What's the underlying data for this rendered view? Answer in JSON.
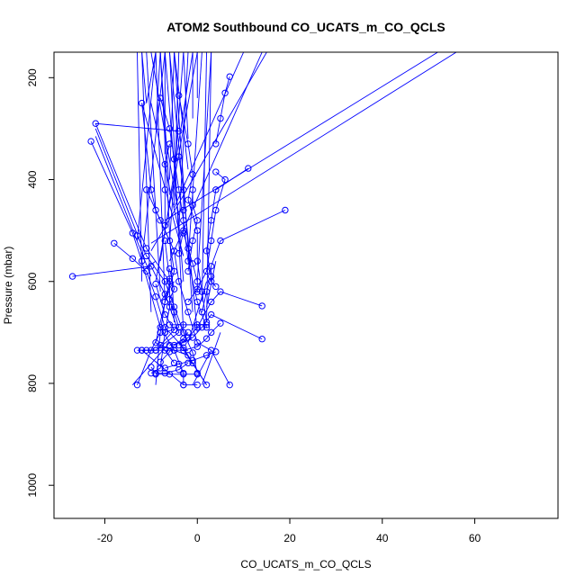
{
  "chart_data": {
    "type": "scatter",
    "title": "ATOM2 Southbound CO_UCATS_m_CO_QCLS",
    "xlabel": "CO_UCATS_m_CO_QCLS",
    "ylabel": "Pressure (mbar)",
    "xlim": [
      -31,
      78
    ],
    "ylim": [
      1065,
      150
    ],
    "y_inverted": true,
    "x_ticks": [
      "-20",
      "0",
      "20",
      "40",
      "60"
    ],
    "y_ticks": [
      "200",
      "400",
      "600",
      "800",
      "1000"
    ],
    "grid": false,
    "legend": "none",
    "line_color": "#0000ff",
    "marker": "open-circle",
    "series": [
      {
        "values": [
          [
            -4,
            305
          ],
          [
            -22,
            290
          ],
          [
            -11,
            535
          ],
          [
            -6,
            600
          ],
          [
            -9,
            720
          ],
          [
            -7,
            735
          ],
          [
            -5,
            760
          ]
        ]
      },
      {
        "values": [
          [
            -23,
            325
          ],
          [
            -14,
            505
          ],
          [
            -12,
            560
          ],
          [
            -8,
            690
          ],
          [
            -5,
            735
          ],
          [
            -3,
            780
          ],
          [
            -3,
            803
          ]
        ]
      },
      {
        "values": [
          [
            -27,
            590
          ],
          [
            -10,
            570
          ],
          [
            -7,
            625
          ],
          [
            -4,
            700
          ],
          [
            -9,
            735
          ],
          [
            -12,
            735
          ],
          [
            -3,
            803
          ],
          [
            0,
            803
          ]
        ]
      },
      {
        "values": [
          [
            -12,
            250
          ],
          [
            -10,
            420
          ],
          [
            -9,
            460
          ],
          [
            -6,
            520
          ],
          [
            -5,
            580
          ],
          [
            -7,
            640
          ],
          [
            -8,
            700
          ],
          [
            -10,
            735
          ],
          [
            -13,
            803
          ]
        ]
      },
      {
        "values": [
          [
            -11,
            420
          ],
          [
            -8,
            480
          ],
          [
            -5,
            540
          ],
          [
            -4,
            600
          ],
          [
            -2,
            660
          ],
          [
            0,
            720
          ],
          [
            3,
            735
          ],
          [
            7,
            803
          ]
        ]
      },
      {
        "values": [
          [
            -18,
            525
          ],
          [
            -14,
            555
          ],
          [
            -11,
            580
          ],
          [
            -9,
            630
          ],
          [
            -7,
            690
          ],
          [
            -3,
            730
          ],
          [
            -1,
            760
          ],
          [
            2,
            803
          ]
        ]
      },
      {
        "values": [
          [
            -13,
            510
          ],
          [
            -11,
            550
          ],
          [
            -7,
            600
          ],
          [
            -5,
            650
          ],
          [
            -3,
            700
          ],
          [
            -1,
            740
          ],
          [
            0,
            780
          ]
        ]
      },
      {
        "values": [
          [
            -7,
            520
          ],
          [
            -6,
            595
          ],
          [
            -6,
            650
          ],
          [
            -7,
            700
          ],
          [
            -8,
            770
          ],
          [
            -10,
            780
          ]
        ]
      },
      {
        "values": [
          [
            -7,
            490
          ],
          [
            -7,
            420
          ],
          [
            -7,
            370
          ],
          [
            -6,
            330
          ]
        ]
      },
      {
        "values": [
          [
            -8,
            240
          ],
          [
            -6,
            300
          ],
          [
            -5,
            360
          ],
          [
            -4,
            420
          ],
          [
            -3,
            480
          ],
          [
            -2,
            560
          ],
          [
            0,
            640
          ],
          [
            2,
            690
          ]
        ]
      },
      {
        "values": [
          [
            -4,
            235
          ],
          [
            -2,
            330
          ],
          [
            -1,
            390
          ],
          [
            -2,
            440
          ],
          [
            0,
            500
          ],
          [
            0,
            560
          ],
          [
            1,
            620
          ],
          [
            2,
            680
          ]
        ]
      },
      {
        "values": [
          [
            -4,
            355
          ],
          [
            -3,
            420
          ],
          [
            -3,
            460
          ],
          [
            -3,
            500
          ],
          [
            -4,
            545
          ]
        ]
      },
      {
        "values": [
          [
            4,
            385
          ],
          [
            6,
            400
          ],
          [
            4,
            460
          ],
          [
            3,
            520
          ],
          [
            2,
            580
          ],
          [
            0,
            615
          ],
          [
            -2,
            640
          ]
        ]
      },
      {
        "values": [
          [
            11,
            378
          ],
          [
            4,
            420
          ],
          [
            3,
            480
          ],
          [
            2,
            540
          ],
          [
            3,
            590
          ],
          [
            2,
            620
          ],
          [
            1,
            660
          ]
        ]
      },
      {
        "values": [
          [
            19,
            460
          ],
          [
            5,
            520
          ],
          [
            3,
            570
          ],
          [
            3,
            600
          ],
          [
            4,
            610
          ]
        ]
      },
      {
        "values": [
          [
            -1,
            420
          ],
          [
            -1,
            450
          ],
          [
            0,
            480
          ],
          [
            -1,
            520
          ],
          [
            -2,
            580
          ]
        ]
      },
      {
        "values": [
          [
            -3,
            505
          ],
          [
            -2,
            535
          ],
          [
            -1,
            565
          ],
          [
            0,
            600
          ],
          [
            0,
            620
          ]
        ]
      },
      {
        "values": [
          [
            -6,
            575
          ],
          [
            -5,
            615
          ],
          [
            -6,
            635
          ],
          [
            -5,
            660
          ],
          [
            -4,
            690
          ],
          [
            -7,
            700
          ]
        ]
      },
      {
        "values": [
          [
            14,
            648
          ],
          [
            5,
            620
          ],
          [
            3,
            640
          ],
          [
            0,
            690
          ],
          [
            -2,
            710
          ],
          [
            -4,
            725
          ]
        ]
      },
      {
        "values": [
          [
            14,
            713
          ],
          [
            3,
            665
          ],
          [
            1,
            690
          ],
          [
            -1,
            710
          ],
          [
            -3,
            720
          ],
          [
            -6,
            725
          ]
        ]
      },
      {
        "values": [
          [
            -9,
            605
          ],
          [
            -7,
            665
          ],
          [
            -5,
            695
          ],
          [
            -8,
            725
          ],
          [
            -5,
            735
          ],
          [
            -2,
            745
          ]
        ]
      },
      {
        "values": [
          [
            5,
            682
          ],
          [
            3,
            700
          ],
          [
            2,
            712
          ],
          [
            0,
            728
          ],
          [
            -3,
            735
          ]
        ]
      },
      {
        "values": [
          [
            4,
            738
          ],
          [
            2,
            745
          ],
          [
            -1,
            755
          ],
          [
            -4,
            762
          ],
          [
            -7,
            770
          ]
        ]
      },
      {
        "values": [
          [
            -2,
            700
          ],
          [
            -3,
            712
          ],
          [
            -5,
            725
          ],
          [
            -6,
            738
          ],
          [
            -8,
            758
          ]
        ]
      },
      {
        "values": [
          [
            -2,
            760
          ],
          [
            -4,
            773
          ],
          [
            -7,
            780
          ],
          [
            -9,
            780
          ],
          [
            -10,
            768
          ]
        ]
      },
      {
        "values": [
          [
            0,
            782
          ],
          [
            -3,
            782
          ],
          [
            -6,
            782
          ],
          [
            -9,
            782
          ]
        ]
      },
      {
        "values": [
          [
            -9,
            735
          ],
          [
            -11,
            735
          ],
          [
            -12,
            735
          ],
          [
            -13,
            735
          ]
        ]
      },
      {
        "values": [
          [
            -6,
            685
          ],
          [
            -3,
            685
          ],
          [
            0,
            685
          ],
          [
            2,
            685
          ]
        ]
      },
      {
        "values": [
          [
            7,
            198
          ],
          [
            6,
            230
          ],
          [
            5,
            280
          ],
          [
            4,
            330
          ]
        ]
      }
    ],
    "unmarked_lines": [
      [
        [
          -22,
          300
        ],
        [
          -12,
          530
        ]
      ],
      [
        [
          -22,
          315
        ],
        [
          -10,
          590
        ]
      ],
      [
        [
          -11,
          250
        ],
        [
          -12,
          150
        ]
      ],
      [
        [
          -11,
          250
        ],
        [
          -9,
          150
        ]
      ],
      [
        [
          -9,
          300
        ],
        [
          -8,
          150
        ]
      ],
      [
        [
          -7,
          350
        ],
        [
          -7,
          150
        ]
      ],
      [
        [
          -6,
          400
        ],
        [
          -5,
          150
        ]
      ],
      [
        [
          -5,
          450
        ],
        [
          -4,
          150
        ]
      ],
      [
        [
          -4,
          500
        ],
        [
          -2,
          150
        ]
      ],
      [
        [
          -6,
          520
        ],
        [
          -3,
          150
        ]
      ],
      [
        [
          -8,
          560
        ],
        [
          -1,
          150
        ]
      ],
      [
        [
          -9,
          600
        ],
        [
          0,
          150
        ]
      ],
      [
        [
          -7,
          640
        ],
        [
          -9,
          150
        ]
      ],
      [
        [
          -5,
          680
        ],
        [
          -8,
          150
        ]
      ],
      [
        [
          -3,
          700
        ],
        [
          -6,
          150
        ]
      ],
      [
        [
          -2,
          560
        ],
        [
          1,
          150
        ]
      ],
      [
        [
          0,
          600
        ],
        [
          3,
          150
        ]
      ],
      [
        [
          1,
          640
        ],
        [
          2,
          150
        ]
      ],
      [
        [
          2,
          680
        ],
        [
          3,
          150
        ]
      ],
      [
        [
          -4,
          470
        ],
        [
          -10,
          150
        ]
      ],
      [
        [
          -6,
          430
        ],
        [
          -8,
          150
        ]
      ],
      [
        [
          -8,
          620
        ],
        [
          -11,
          150
        ]
      ],
      [
        [
          -10,
          660
        ],
        [
          -12,
          150
        ]
      ],
      [
        [
          -12,
          600
        ],
        [
          -13,
          150
        ]
      ],
      [
        [
          -13,
          520
        ],
        [
          -9,
          150
        ]
      ],
      [
        [
          -3,
          600
        ],
        [
          -7,
          150
        ]
      ],
      [
        [
          -1,
          660
        ],
        [
          -5,
          150
        ]
      ],
      [
        [
          0,
          700
        ],
        [
          -6,
          150
        ]
      ],
      [
        [
          -2,
          380
        ],
        [
          -5,
          150
        ]
      ],
      [
        [
          -2,
          320
        ],
        [
          -3,
          150
        ]
      ],
      [
        [
          -1,
          280
        ],
        [
          -1,
          150
        ]
      ],
      [
        [
          0,
          240
        ],
        [
          0,
          150
        ]
      ],
      [
        [
          -12,
          560
        ],
        [
          -7,
          150
        ]
      ],
      [
        [
          -6,
          560
        ],
        [
          14,
          150
        ]
      ],
      [
        [
          -10,
          540
        ],
        [
          15,
          150
        ]
      ],
      [
        [
          -10,
          525
        ],
        [
          56,
          150
        ]
      ],
      [
        [
          -7,
          480
        ],
        [
          52,
          150
        ]
      ],
      [
        [
          -5,
          455
        ],
        [
          10,
          150
        ]
      ],
      [
        [
          -4,
          500
        ],
        [
          -10,
          250
        ]
      ],
      [
        [
          -3,
          550
        ],
        [
          -12,
          250
        ]
      ],
      [
        [
          -6,
          720
        ],
        [
          -14,
          803
        ]
      ],
      [
        [
          -4,
          720
        ],
        [
          2,
          803
        ]
      ],
      [
        [
          -2,
          735
        ],
        [
          -12,
          735
        ]
      ],
      [
        [
          -8,
          700
        ],
        [
          -9,
          803
        ]
      ],
      [
        [
          3,
          735
        ],
        [
          -1,
          803
        ]
      ],
      [
        [
          5,
          700
        ],
        [
          1,
          803
        ]
      ],
      [
        [
          -9,
          560
        ],
        [
          -12,
          580
        ]
      ],
      [
        [
          -5,
          600
        ],
        [
          -8,
          640
        ]
      ],
      [
        [
          2,
          600
        ],
        [
          -2,
          720
        ]
      ],
      [
        [
          4,
          560
        ],
        [
          2,
          650
        ]
      ]
    ]
  }
}
